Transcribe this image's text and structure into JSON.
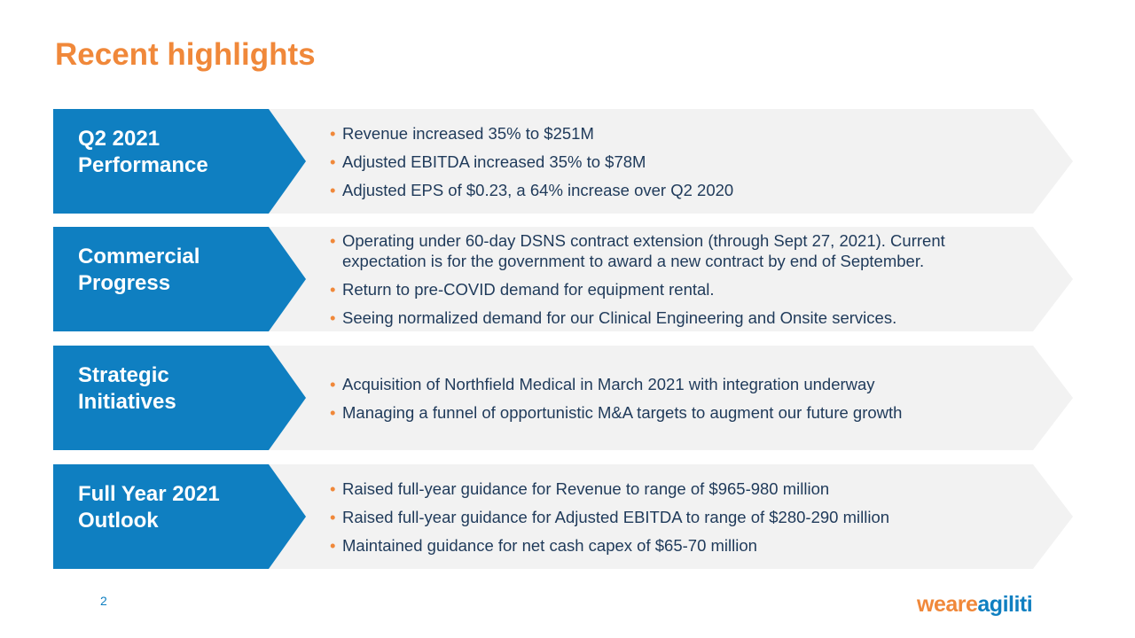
{
  "header": {
    "title": "Recent highlights"
  },
  "rows": [
    {
      "label": [
        "Q2 2021",
        "Performance"
      ],
      "bullets": [
        "Revenue increased 35% to $251M",
        "Adjusted EBITDA increased 35% to $78M",
        "Adjusted EPS of $0.23, a 64% increase over Q2 2020"
      ]
    },
    {
      "label": [
        "Commercial",
        "Progress"
      ],
      "bullets": [
        "Operating under 60-day DSNS contract extension (through Sept 27, 2021).  Current expectation is for the government to award a new contract by end of September.",
        "Return to pre-COVID demand for equipment rental.",
        "Seeing normalized demand for our Clinical Engineering and Onsite services."
      ]
    },
    {
      "label": [
        "Strategic",
        "Initiatives"
      ],
      "bullets": [
        "Acquisition of Northfield Medical in March 2021 with integration underway",
        "Managing a funnel of opportunistic M&A targets to augment our future growth"
      ]
    },
    {
      "label": [
        "Full Year 2021",
        "Outlook"
      ],
      "bullets": [
        "Raised full-year guidance for Revenue to range of $965-980 million",
        "Raised full-year guidance for Adjusted EBITDA to range of $280-290 million",
        "Maintained guidance for net cash capex of $65-70 million"
      ]
    }
  ],
  "footer": {
    "page": "2",
    "logo": [
      "we",
      "are",
      "agiliti"
    ]
  }
}
